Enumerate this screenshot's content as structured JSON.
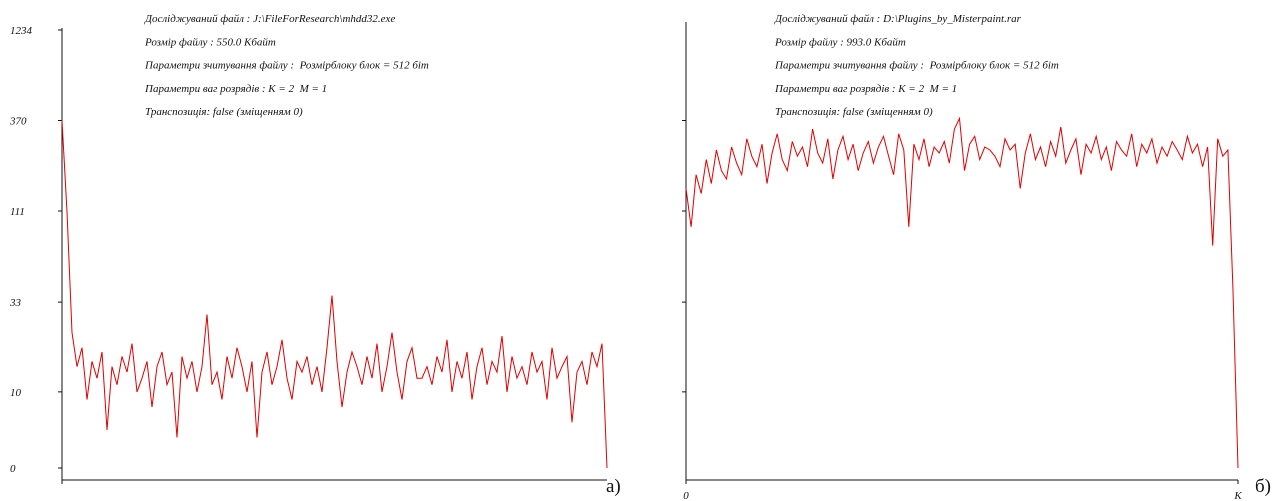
{
  "chart_data": [
    {
      "type": "line",
      "yscale": "symlog",
      "ylim": [
        0,
        1234
      ],
      "yticks": [
        0,
        10,
        33,
        111,
        370,
        1234
      ],
      "tick_labels": true,
      "xlim": [
        0,
        109
      ],
      "xticks": [
        0
      ],
      "x_tick_labels": false,
      "color": "#e00000",
      "panel_label": "а)",
      "annotations": [
        "Досліджуваний файл : J:\\FileForResearch\\mhdd32.exe",
        "Розмір файлу : 550.0 Кбайт",
        "Параметри зчитування файлу :  Розмірблоку блок = 512 біт",
        "Параметри ваг розрядів : K = 2  M = 1",
        "Транспозиція: false (зміщенням 0)"
      ],
      "values": [
        370,
        110,
        22,
        14,
        18,
        9,
        15,
        12,
        17,
        5,
        14,
        11,
        16,
        13,
        19,
        10,
        12,
        15,
        8,
        14,
        17,
        11,
        13,
        4,
        16,
        12,
        15,
        10,
        14,
        28,
        11,
        13,
        9,
        16,
        12,
        18,
        14,
        10,
        15,
        4,
        13,
        17,
        11,
        14,
        20,
        12,
        9,
        15,
        13,
        16,
        11,
        14,
        10,
        18,
        36,
        15,
        8,
        13,
        17,
        14,
        11,
        16,
        12,
        19,
        10,
        14,
        22,
        13,
        9,
        15,
        18,
        12,
        12,
        14,
        11,
        16,
        13,
        20,
        10,
        15,
        12,
        17,
        9,
        14,
        18,
        11,
        15,
        13,
        21,
        10,
        16,
        12,
        14,
        11,
        17,
        13,
        15,
        9,
        18,
        12,
        14,
        16,
        6,
        13,
        15,
        11,
        17,
        14,
        19,
        0
      ]
    },
    {
      "type": "line",
      "yscale": "symlog",
      "ylim": [
        0,
        1234
      ],
      "yticks": [
        10,
        33,
        111,
        370
      ],
      "tick_labels": false,
      "xlim": [
        0,
        109
      ],
      "xticks": [
        0,
        {
          "value": 109,
          "label": "K"
        }
      ],
      "x_tick_labels": true,
      "color": "#e00000",
      "panel_label": "б)",
      "annotations": [
        "Досліджуваний файл : D:\\Plugins_by_Misterpaint.rar",
        "Розмір файлу : 993.0 Кбайт",
        "Параметри зчитування файлу :  Розмірблоку блок = 512 біт",
        "Параметри ваг розрядів : K = 2  M = 1",
        "Транспозиція: false (зміщенням 0)"
      ],
      "values": [
        150,
        90,
        180,
        140,
        220,
        160,
        250,
        190,
        170,
        260,
        210,
        180,
        290,
        230,
        200,
        270,
        160,
        240,
        310,
        220,
        190,
        280,
        230,
        260,
        200,
        330,
        240,
        210,
        290,
        170,
        250,
        300,
        220,
        270,
        190,
        240,
        280,
        210,
        260,
        300,
        230,
        180,
        310,
        250,
        90,
        270,
        220,
        290,
        200,
        260,
        240,
        280,
        210,
        330,
        380,
        190,
        270,
        300,
        220,
        260,
        250,
        230,
        200,
        290,
        250,
        270,
        150,
        240,
        310,
        220,
        260,
        200,
        280,
        230,
        340,
        210,
        250,
        290,
        180,
        270,
        240,
        300,
        220,
        260,
        190,
        280,
        250,
        230,
        310,
        200,
        270,
        240,
        290,
        210,
        260,
        230,
        280,
        250,
        220,
        300,
        240,
        270,
        200,
        260,
        70,
        290,
        230,
        250,
        40,
        0
      ]
    }
  ]
}
